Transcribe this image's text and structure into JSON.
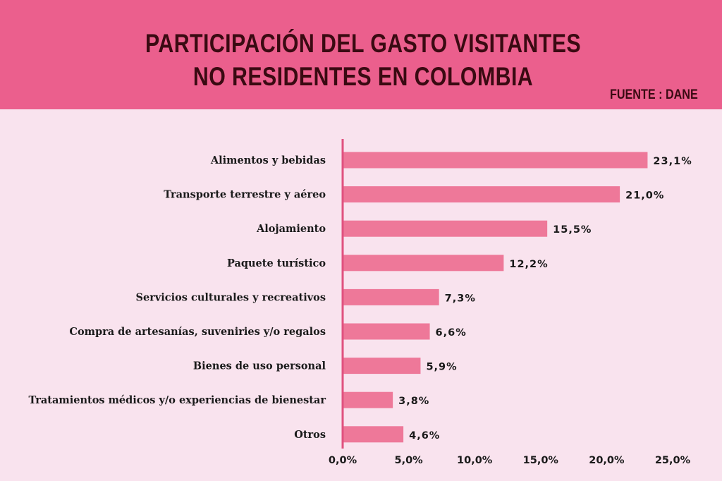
{
  "header": {
    "title_line1": "PARTICIPACIÓN DEL GASTO VISITANTES",
    "title_line2": "NO RESIDENTES EN COLOMBIA",
    "source": "FUENTE : DANE"
  },
  "colors": {
    "header_bg": "#eb5f8d",
    "page_bg": "#f9e3ee",
    "bar": "#ee7899",
    "axis": "#e0527f"
  },
  "chart_data": {
    "type": "bar",
    "orientation": "horizontal",
    "categories": [
      "Alimentos y  bebidas",
      "Transporte terrestre y aéreo",
      "Alojamiento",
      "Paquete turístico",
      "Servicios culturales y recreativos",
      "Compra de artesanías, suveniries y/o regalos",
      "Bienes de uso personal",
      "Tratamientos médicos y/o experiencias de bienestar",
      "Otros"
    ],
    "values": [
      23.1,
      21.0,
      15.5,
      12.2,
      7.3,
      6.6,
      5.9,
      3.8,
      4.6
    ],
    "value_labels": [
      "23,1%",
      "21,0%",
      "15,5%",
      "12,2%",
      "7,3%",
      "6,6%",
      "5,9%",
      "3,8%",
      "4,6%"
    ],
    "xticks": [
      0,
      5,
      10,
      15,
      20,
      25
    ],
    "xtick_labels": [
      "0,0%",
      "5,0%",
      "10,0%",
      "15,0%",
      "20,0%",
      "25,0%"
    ],
    "xlim": [
      0,
      25
    ],
    "grid": false,
    "legend": "none"
  }
}
